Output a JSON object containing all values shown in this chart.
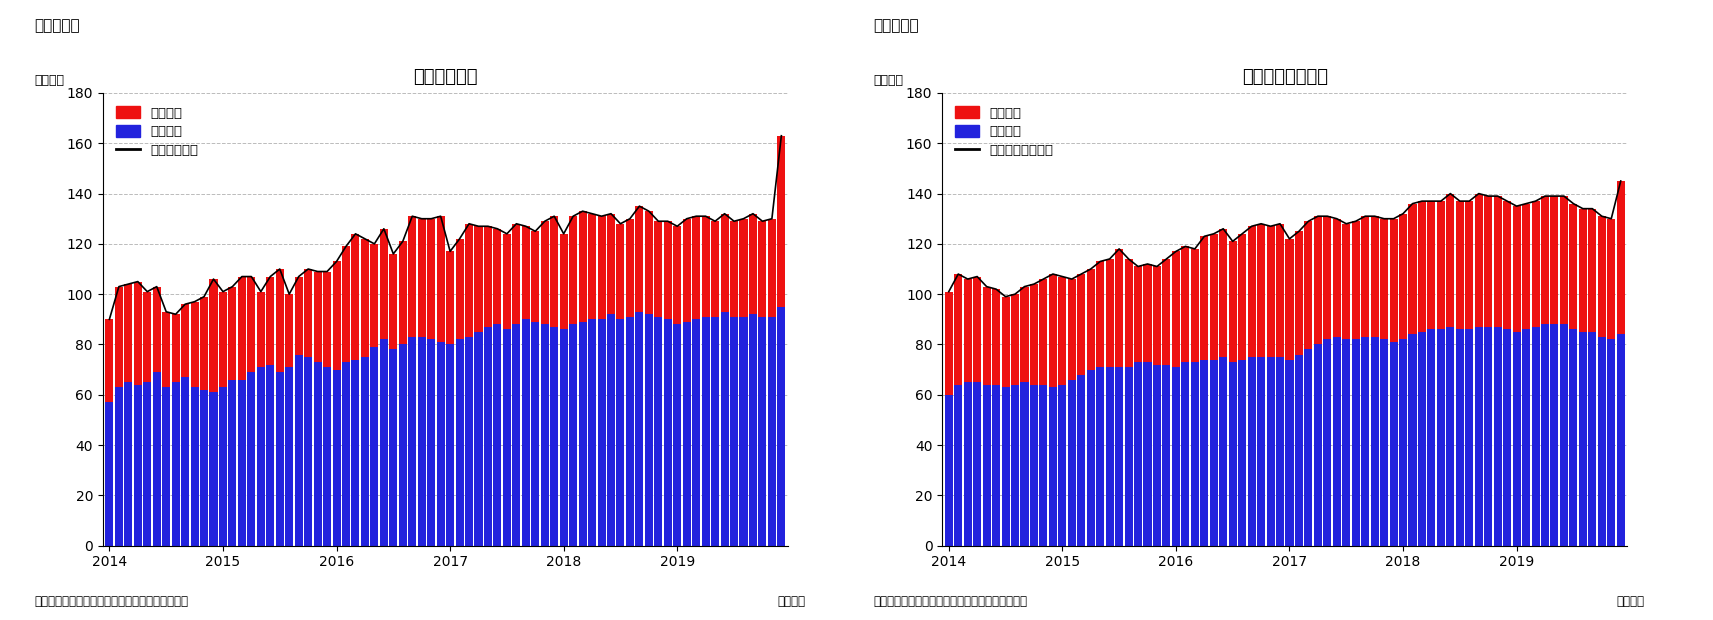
{
  "chart1_title": "住宅着工件数",
  "chart2_title": "住宅着工許可件数",
  "fig_label1": "（図表１）",
  "fig_label2": "（図表２）",
  "ylabel": "（万件）",
  "source": "（資料）センサス局よりニッセイ基礎研究所作成",
  "xunit": "（月次）",
  "legend1": [
    "集合住宅",
    "一戸建て",
    "住宅着工件数"
  ],
  "legend2": [
    "集合住宅",
    "一戸建て",
    "住宅建築許可件数"
  ],
  "bar_color_red": "#EE1111",
  "bar_color_blue": "#2222DD",
  "line_color": "#000000",
  "ylim": [
    0,
    180
  ],
  "yticks": [
    0,
    20,
    40,
    60,
    80,
    100,
    120,
    140,
    160,
    180
  ],
  "bg_color": "#FFFFFF",
  "grid_color": "#AAAAAA",
  "chart1_detached": [
    57,
    63,
    65,
    64,
    65,
    69,
    63,
    65,
    67,
    63,
    62,
    61,
    63,
    66,
    66,
    69,
    71,
    72,
    69,
    71,
    76,
    75,
    73,
    71,
    70,
    73,
    74,
    75,
    79,
    82,
    78,
    80,
    83,
    83,
    82,
    81,
    80,
    82,
    83,
    85,
    87,
    88,
    86,
    88,
    90,
    89,
    88,
    87,
    86,
    88,
    89,
    90,
    90,
    92,
    90,
    91,
    93,
    92,
    91,
    90,
    88,
    89,
    90,
    91,
    91,
    93,
    91,
    91,
    92,
    91,
    91,
    95
  ],
  "chart1_condo": [
    33,
    40,
    39,
    41,
    36,
    34,
    30,
    27,
    29,
    34,
    37,
    45,
    38,
    37,
    41,
    38,
    30,
    35,
    41,
    29,
    31,
    35,
    36,
    38,
    43,
    46,
    50,
    47,
    41,
    44,
    38,
    41,
    48,
    47,
    48,
    50,
    37,
    40,
    45,
    42,
    40,
    38,
    38,
    40,
    37,
    36,
    41,
    44,
    38,
    43,
    44,
    42,
    41,
    40,
    38,
    39,
    42,
    41,
    38,
    39,
    39,
    41,
    41,
    40,
    38,
    39,
    38,
    39,
    40,
    38,
    39,
    68
  ],
  "chart2_detached": [
    60,
    64,
    65,
    65,
    64,
    64,
    63,
    64,
    65,
    64,
    64,
    63,
    64,
    66,
    68,
    70,
    71,
    71,
    71,
    71,
    73,
    73,
    72,
    72,
    71,
    73,
    73,
    74,
    74,
    75,
    73,
    74,
    75,
    75,
    75,
    75,
    74,
    76,
    78,
    80,
    82,
    83,
    82,
    82,
    83,
    83,
    82,
    81,
    82,
    84,
    85,
    86,
    86,
    87,
    86,
    86,
    87,
    87,
    87,
    86,
    85,
    86,
    87,
    88,
    88,
    88,
    86,
    85,
    85,
    83,
    82,
    84
  ],
  "chart2_condo": [
    41,
    44,
    41,
    42,
    39,
    38,
    36,
    36,
    38,
    40,
    42,
    45,
    43,
    40,
    40,
    40,
    42,
    43,
    47,
    43,
    38,
    39,
    39,
    42,
    46,
    46,
    45,
    49,
    50,
    51,
    48,
    50,
    52,
    53,
    52,
    53,
    48,
    49,
    51,
    51,
    49,
    47,
    46,
    47,
    48,
    48,
    48,
    49,
    50,
    52,
    52,
    51,
    51,
    53,
    51,
    51,
    53,
    52,
    52,
    51,
    50,
    50,
    50,
    51,
    51,
    51,
    50,
    49,
    49,
    48,
    48,
    61
  ]
}
